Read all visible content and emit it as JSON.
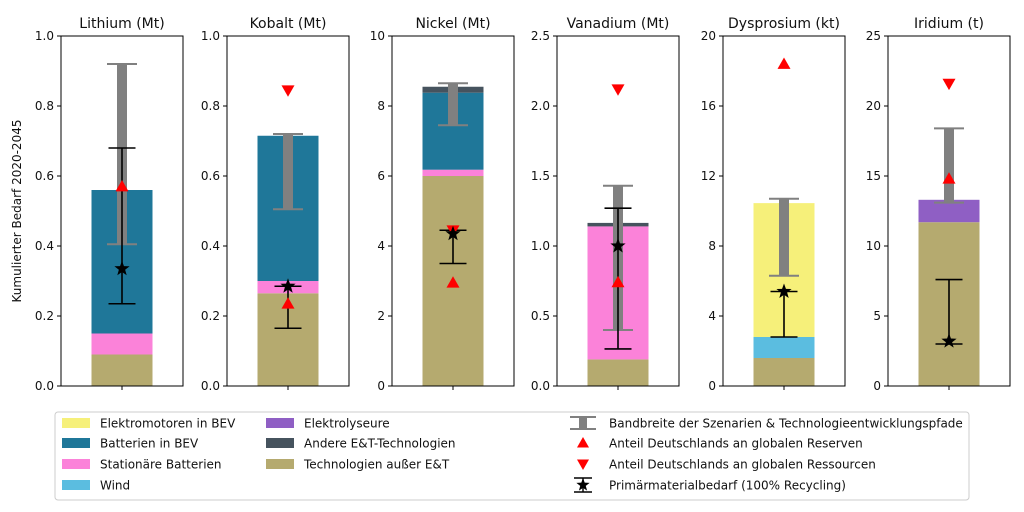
{
  "ylabel": "Kumulierter Bedarf 2020-2045",
  "legend_col1": [
    {
      "label": "Elektromotoren in BEV",
      "color": "#f6f07a"
    },
    {
      "label": "Batterien in BEV",
      "color": "#1f7799"
    },
    {
      "label": "Stationäre Batterien",
      "color": "#fb82d9"
    },
    {
      "label": "Wind",
      "color": "#5bbde0"
    }
  ],
  "legend_col2": [
    {
      "label": "Elektrolyseure",
      "color": "#8f5fc4"
    },
    {
      "label": "Andere E&T-Technologien",
      "color": "#46535e"
    },
    {
      "label": "Technologien außer E&T",
      "color": "#b5aa6f"
    }
  ],
  "legend_col3": [
    {
      "label": "Bandbreite der Szenarien & Technologieentwicklungspfade",
      "marker": "range"
    },
    {
      "label": "Anteil Deutschlands an globalen Reserven",
      "marker": "triangle-up"
    },
    {
      "label": "Anteil Deutschlands an globalen Ressourcen",
      "marker": "triangle-down"
    },
    {
      "label": "Primärmaterialbedarf (100% Recycling)",
      "marker": "star-errorbar"
    }
  ],
  "chart_data": [
    {
      "type": "bar",
      "title": "Lithium (Mt)",
      "ylim": [
        0,
        1.0
      ],
      "yticks": [
        "0.0",
        "0.2",
        "0.4",
        "0.6",
        "0.8",
        "1.0"
      ],
      "stack": [
        {
          "name": "Technologien außer E&T",
          "value": 0.09
        },
        {
          "name": "Stationäre Batterien",
          "value": 0.06
        },
        {
          "name": "Batterien in BEV",
          "value": 0.41
        }
      ],
      "range": [
        0.405,
        0.92
      ],
      "primary": {
        "value": 0.335,
        "low": 0.235,
        "high": 0.68
      },
      "reserves": 0.57,
      "resources": null
    },
    {
      "type": "bar",
      "title": "Kobalt (Mt)",
      "ylim": [
        0,
        1.0
      ],
      "yticks": [
        "0.0",
        "0.2",
        "0.4",
        "0.6",
        "0.8",
        "1.0"
      ],
      "stack": [
        {
          "name": "Technologien außer E&T",
          "value": 0.265
        },
        {
          "name": "Stationäre Batterien",
          "value": 0.035
        },
        {
          "name": "Batterien in BEV",
          "value": 0.415
        }
      ],
      "range": [
        0.505,
        0.72
      ],
      "primary": {
        "value": 0.285,
        "low": 0.165,
        "high": 0.285
      },
      "reserves": 0.235,
      "resources": 0.845
    },
    {
      "type": "bar",
      "title": "Nickel (Mt)",
      "ylim": [
        0,
        10
      ],
      "yticks": [
        "0",
        "2",
        "4",
        "6",
        "8",
        "10"
      ],
      "stack": [
        {
          "name": "Technologien außer E&T",
          "value": 6.0
        },
        {
          "name": "Stationäre Batterien",
          "value": 0.18
        },
        {
          "name": "Batterien in BEV",
          "value": 2.2
        },
        {
          "name": "Andere E&T-Technologien",
          "value": 0.17
        }
      ],
      "range": [
        7.45,
        8.65
      ],
      "primary": {
        "value": 4.35,
        "low": 3.5,
        "high": 4.45
      },
      "reserves": 2.95,
      "resources": 4.45
    },
    {
      "type": "bar",
      "title": "Vanadium (Mt)",
      "ylim": [
        0,
        2.5
      ],
      "yticks": [
        "0.0",
        "0.5",
        "1.0",
        "1.5",
        "2.0",
        "2.5"
      ],
      "stack": [
        {
          "name": "Technologien außer E&T",
          "value": 0.19
        },
        {
          "name": "Stationäre Batterien",
          "value": 0.95
        },
        {
          "name": "Andere E&T-Technologien",
          "value": 0.025
        }
      ],
      "range": [
        0.4,
        1.43
      ],
      "primary": {
        "value": 1.0,
        "low": 0.265,
        "high": 1.27
      },
      "reserves": 0.74,
      "resources": 2.12
    },
    {
      "type": "bar",
      "title": "Dysprosium (kt)",
      "ylim": [
        0,
        20
      ],
      "yticks": [
        "0",
        "4",
        "8",
        "12",
        "16",
        "20"
      ],
      "stack": [
        {
          "name": "Technologien außer E&T",
          "value": 1.6
        },
        {
          "name": "Wind",
          "value": 1.2
        },
        {
          "name": "Elektromotoren in BEV",
          "value": 7.65
        }
      ],
      "range": [
        6.3,
        10.7
      ],
      "primary": {
        "value": 5.4,
        "low": 2.8,
        "high": 5.4
      },
      "reserves": 18.4,
      "resources": null
    },
    {
      "type": "bar",
      "title": "Iridium (t)",
      "ylim": [
        0,
        25
      ],
      "yticks": [
        "0",
        "5",
        "10",
        "15",
        "20",
        "25"
      ],
      "stack": [
        {
          "name": "Technologien außer E&T",
          "value": 11.7
        },
        {
          "name": "Elektrolyseure",
          "value": 1.6
        }
      ],
      "range": [
        13.1,
        18.4
      ],
      "primary": {
        "value": 3.2,
        "low": 3.0,
        "high": 7.6
      },
      "reserves": 14.8,
      "resources": 21.6
    }
  ]
}
